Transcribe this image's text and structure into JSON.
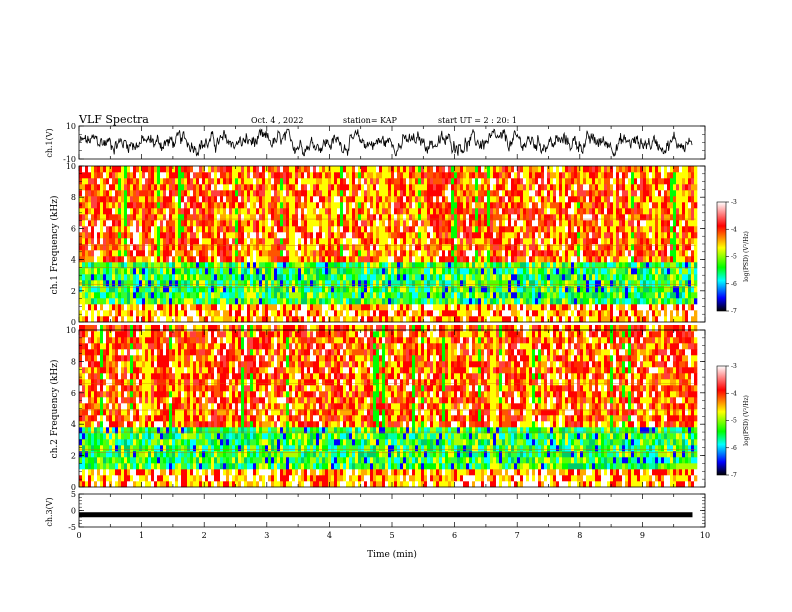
{
  "header": {
    "title": "VLF Spectra",
    "date": "Oct. 4 , 2022",
    "station": "station= KAP",
    "start": "start UT =  2 : 20: 1"
  },
  "colorbar": {
    "label": "log(PSD) (V²/Hz)",
    "ticks": [
      "-3",
      "-4",
      "-5",
      "-6",
      "-7"
    ],
    "colors": [
      "#ffffff",
      "#ff0000",
      "#ffff00",
      "#00ff00",
      "#00ffff",
      "#0000ff",
      "#000000"
    ]
  },
  "chart_data": [
    {
      "type": "line",
      "panel": "ch1-waveform",
      "ylabel": "ch.1(V)",
      "ylim": [
        -10,
        10
      ],
      "yticks": [
        "10",
        "-10"
      ],
      "xlim": [
        0,
        10
      ],
      "series": [
        {
          "x": [
            0,
            9.8
          ],
          "values": [
            0,
            0
          ]
        }
      ]
    },
    {
      "type": "heatmap",
      "panel": "ch1-spectrogram",
      "ylabel": "ch.1 Frequency (kHz)",
      "ylim": [
        0,
        10
      ],
      "yticks": [
        "0",
        "2",
        "4",
        "6",
        "8",
        "10"
      ],
      "xlim": [
        0,
        10
      ],
      "clim": [
        -7,
        -3
      ]
    },
    {
      "type": "heatmap",
      "panel": "ch2-spectrogram",
      "ylabel": "ch.2 Frequency (kHz)",
      "ylim": [
        0,
        10
      ],
      "yticks": [
        "0",
        "2",
        "4",
        "6",
        "8",
        "10"
      ],
      "xlim": [
        0,
        10
      ],
      "clim": [
        -7,
        -3
      ]
    },
    {
      "type": "line",
      "panel": "ch3-waveform",
      "ylabel": "ch.3(V)",
      "ylim": [
        -5,
        5
      ],
      "yticks": [
        "5",
        "0",
        "-5"
      ],
      "xlim": [
        0,
        10
      ],
      "series": [
        {
          "x": [
            0,
            9.8
          ],
          "values": [
            -1.3,
            -1.3
          ]
        }
      ]
    }
  ],
  "xaxis": {
    "label": "Time (min)",
    "ticks": [
      "0",
      "1",
      "2",
      "3",
      "4",
      "5",
      "6",
      "7",
      "8",
      "9",
      "10"
    ]
  }
}
